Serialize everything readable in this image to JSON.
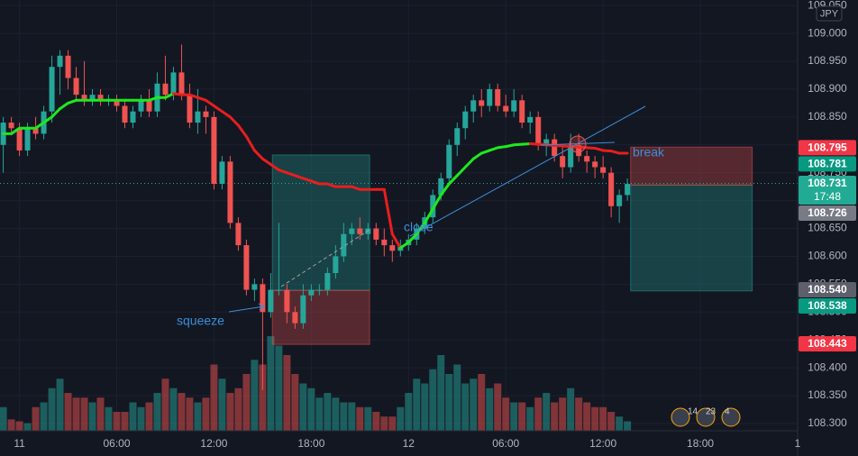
{
  "chart_data": {
    "type": "candlestick",
    "currency": "JPY",
    "x": [
      -1,
      -0.5,
      0,
      0.5,
      1,
      1.5,
      2,
      2.5,
      3,
      3.5,
      4,
      4.5,
      5,
      5.5,
      6,
      6.5,
      7,
      7.5,
      8,
      8.5,
      9,
      9.5,
      10,
      10.5,
      11,
      11.5,
      12,
      12.5,
      13,
      13.5,
      14,
      14.5,
      15,
      15.5,
      16,
      16.5,
      17,
      17.5,
      18,
      18.5,
      19,
      19.5,
      20,
      20.5,
      21,
      21.5,
      22,
      22.5,
      23,
      23.5,
      24,
      24.5,
      25,
      25.5,
      26,
      26.5,
      27,
      27.5,
      28,
      28.5,
      29,
      29.5,
      30,
      30.5,
      31,
      31.5,
      32,
      32.5,
      33,
      33.5,
      34,
      34.5,
      35,
      35.5,
      36,
      36.5,
      37,
      37.5
    ],
    "candles": [
      [
        108.8,
        108.85,
        108.75,
        108.84
      ],
      [
        108.84,
        108.85,
        108.82,
        108.83
      ],
      [
        108.83,
        108.84,
        108.78,
        108.79
      ],
      [
        108.79,
        108.84,
        108.78,
        108.83
      ],
      [
        108.83,
        108.85,
        108.81,
        108.82
      ],
      [
        108.82,
        108.87,
        108.81,
        108.86
      ],
      [
        108.86,
        108.96,
        108.84,
        108.94
      ],
      [
        108.94,
        108.97,
        108.89,
        108.96
      ],
      [
        108.96,
        108.97,
        108.9,
        108.92
      ],
      [
        108.92,
        108.94,
        108.88,
        108.89
      ],
      [
        108.89,
        108.95,
        108.87,
        108.88
      ],
      [
        108.88,
        108.9,
        108.87,
        108.89
      ],
      [
        108.89,
        108.9,
        108.87,
        108.88
      ],
      [
        108.88,
        108.89,
        108.87,
        108.88
      ],
      [
        108.88,
        108.89,
        108.86,
        108.87
      ],
      [
        108.87,
        108.88,
        108.83,
        108.84
      ],
      [
        108.84,
        108.87,
        108.83,
        108.86
      ],
      [
        108.86,
        108.89,
        108.85,
        108.88
      ],
      [
        108.88,
        108.9,
        108.85,
        108.86
      ],
      [
        108.86,
        108.93,
        108.85,
        108.91
      ],
      [
        108.91,
        108.96,
        108.88,
        108.89
      ],
      [
        108.89,
        108.94,
        108.88,
        108.93
      ],
      [
        108.93,
        108.98,
        108.88,
        108.89
      ],
      [
        108.89,
        108.91,
        108.83,
        108.84
      ],
      [
        108.84,
        108.9,
        108.82,
        108.86
      ],
      [
        108.86,
        108.87,
        108.82,
        108.85
      ],
      [
        108.85,
        108.86,
        108.72,
        108.73
      ],
      [
        108.73,
        108.78,
        108.72,
        108.77
      ],
      [
        108.77,
        108.78,
        108.65,
        108.66
      ],
      [
        108.66,
        108.67,
        108.61,
        108.62
      ],
      [
        108.62,
        108.63,
        108.53,
        108.54
      ],
      [
        108.54,
        108.56,
        108.52,
        108.55
      ],
      [
        108.55,
        108.56,
        108.36,
        108.5
      ],
      [
        108.5,
        108.57,
        108.49,
        108.54
      ],
      [
        108.54,
        108.66,
        108.53,
        108.54
      ],
      [
        108.54,
        108.55,
        108.48,
        108.5
      ],
      [
        108.5,
        108.51,
        108.47,
        108.48
      ],
      [
        108.48,
        108.55,
        108.47,
        108.53
      ],
      [
        108.53,
        108.55,
        108.52,
        108.54
      ],
      [
        108.54,
        108.55,
        108.53,
        108.54
      ],
      [
        108.54,
        108.58,
        108.53,
        108.57
      ],
      [
        108.57,
        108.62,
        108.56,
        108.6
      ],
      [
        108.6,
        108.66,
        108.59,
        108.64
      ],
      [
        108.64,
        108.66,
        108.62,
        108.65
      ],
      [
        108.65,
        108.67,
        108.63,
        108.64
      ],
      [
        108.64,
        108.66,
        108.63,
        108.65
      ],
      [
        108.65,
        108.66,
        108.62,
        108.63
      ],
      [
        108.63,
        108.65,
        108.6,
        108.62
      ],
      [
        108.62,
        108.63,
        108.59,
        108.61
      ],
      [
        108.61,
        108.63,
        108.6,
        108.62
      ],
      [
        108.62,
        108.64,
        108.61,
        108.63
      ],
      [
        108.63,
        108.66,
        108.62,
        108.65
      ],
      [
        108.65,
        108.68,
        108.64,
        108.67
      ],
      [
        108.67,
        108.72,
        108.66,
        108.71
      ],
      [
        108.71,
        108.75,
        108.7,
        108.74
      ],
      [
        108.74,
        108.81,
        108.73,
        108.8
      ],
      [
        108.8,
        108.84,
        108.78,
        108.83
      ],
      [
        108.83,
        108.87,
        108.81,
        108.86
      ],
      [
        108.86,
        108.89,
        108.84,
        108.88
      ],
      [
        108.88,
        108.9,
        108.85,
        108.87
      ],
      [
        108.87,
        108.91,
        108.86,
        108.9
      ],
      [
        108.9,
        108.91,
        108.86,
        108.87
      ],
      [
        108.87,
        108.89,
        108.85,
        108.86
      ],
      [
        108.86,
        108.9,
        108.85,
        108.88
      ],
      [
        108.88,
        108.89,
        108.83,
        108.84
      ],
      [
        108.84,
        108.86,
        108.82,
        108.85
      ],
      [
        108.85,
        108.86,
        108.79,
        108.8
      ],
      [
        108.8,
        108.82,
        108.78,
        108.81
      ],
      [
        108.81,
        108.82,
        108.77,
        108.78
      ],
      [
        108.78,
        108.8,
        108.74,
        108.76
      ],
      [
        108.76,
        108.82,
        108.75,
        108.8
      ],
      [
        108.8,
        108.82,
        108.77,
        108.78
      ],
      [
        108.78,
        108.79,
        108.75,
        108.77
      ],
      [
        108.77,
        108.78,
        108.74,
        108.76
      ],
      [
        108.76,
        108.78,
        108.74,
        108.75
      ],
      [
        108.75,
        108.76,
        108.67,
        108.69
      ],
      [
        108.69,
        108.72,
        108.66,
        108.71
      ],
      [
        108.71,
        108.74,
        108.7,
        108.73
      ]
    ],
    "volume": [
      25,
      12,
      10,
      8,
      25,
      30,
      45,
      55,
      40,
      35,
      35,
      30,
      35,
      25,
      20,
      20,
      30,
      25,
      30,
      40,
      55,
      45,
      40,
      35,
      30,
      35,
      70,
      55,
      40,
      45,
      60,
      75,
      70,
      100,
      90,
      80,
      60,
      50,
      45,
      35,
      40,
      35,
      30,
      30,
      25,
      25,
      20,
      15,
      15,
      25,
      40,
      55,
      50,
      65,
      80,
      60,
      70,
      50,
      55,
      60,
      45,
      50,
      35,
      30,
      30,
      25,
      35,
      40,
      30,
      35,
      45,
      35,
      30,
      25,
      25,
      20,
      15,
      10
    ],
    "up_color": "#26a69a",
    "down_color": "#ef5350",
    "ma": {
      "up_color": "#1ee81e",
      "down_color": "#e81e1e",
      "values": [
        108.82,
        108.82,
        108.83,
        108.83,
        108.83,
        108.84,
        108.85,
        108.865,
        108.875,
        108.88,
        108.88,
        108.88,
        108.88,
        108.88,
        108.88,
        108.88,
        108.88,
        108.88,
        108.88,
        108.885,
        108.885,
        108.892,
        108.89,
        108.89,
        108.885,
        108.88,
        108.87,
        108.86,
        108.85,
        108.835,
        108.815,
        108.79,
        108.775,
        108.765,
        108.755,
        108.75,
        108.745,
        108.74,
        108.735,
        108.73,
        108.73,
        108.725,
        108.725,
        108.725,
        108.72,
        108.72,
        108.72,
        108.72,
        108.64,
        108.615,
        108.625,
        108.64,
        108.66,
        108.685,
        108.71,
        108.73,
        108.745,
        108.76,
        108.775,
        108.785,
        108.79,
        108.795,
        108.797,
        108.8,
        108.801,
        108.802,
        108.801,
        108.8,
        108.799,
        108.798,
        108.797,
        108.796,
        108.795,
        108.794,
        108.79,
        108.789,
        108.785,
        108.785
      ]
    },
    "positions": [
      {
        "x": [
          15.6,
          21.6
        ],
        "entry": 108.539,
        "target": 108.782,
        "stop": 108.442
      },
      {
        "x": [
          37.7,
          45.2
        ],
        "entry": 108.728,
        "target": 108.538,
        "stop": 108.796
      }
    ],
    "last_price": 108.731,
    "price_labels": [
      {
        "value": 108.795,
        "label": "108.795",
        "color": "#f23645"
      },
      {
        "value": 108.781,
        "label": "108.781",
        "color": "#089981"
      },
      {
        "value": 108.731,
        "label": "108.731",
        "color": "#22ab94",
        "countdown": "17:48"
      },
      {
        "value": 108.726,
        "label": "108.726",
        "color": "#787b86"
      },
      {
        "value": 108.54,
        "label": "108.540",
        "color": "#5d606b"
      },
      {
        "value": 108.538,
        "label": "108.538",
        "color": "#089981"
      },
      {
        "value": 108.443,
        "label": "108.443",
        "color": "#f23645"
      }
    ],
    "annotations": [
      "squeeze",
      "close",
      "break"
    ],
    "events": [
      "14",
      "23",
      "4"
    ],
    "xlim": [
      -1.2,
      48
    ],
    "ylim": [
      108.287,
      109.06
    ],
    "xticks": [
      {
        "value": 0,
        "label": "11"
      },
      {
        "value": 6,
        "label": "06:00"
      },
      {
        "value": 12,
        "label": "12:00"
      },
      {
        "value": 18,
        "label": "18:00"
      },
      {
        "value": 24,
        "label": "12"
      },
      {
        "value": 30,
        "label": "06:00"
      },
      {
        "value": 36,
        "label": "12:00"
      },
      {
        "value": 42,
        "label": "18:00"
      },
      {
        "value": 48,
        "label": "1"
      }
    ],
    "yticks": [
      {
        "value": 108.3,
        "label": "108.300"
      },
      {
        "value": 108.35,
        "label": "108.350"
      },
      {
        "value": 108.4,
        "label": "108.400"
      },
      {
        "value": 108.45,
        "label": "108.450"
      },
      {
        "value": 108.5,
        "label": "108.500"
      },
      {
        "value": 108.55,
        "label": "108.550"
      },
      {
        "value": 108.6,
        "label": "108.600"
      },
      {
        "value": 108.65,
        "label": "108.650"
      },
      {
        "value": 108.7,
        "label": "108.700"
      },
      {
        "value": 108.75,
        "label": "108.750"
      },
      {
        "value": 108.8,
        "label": "108.800"
      },
      {
        "value": 108.85,
        "label": "108.850"
      },
      {
        "value": 108.9,
        "label": "108.900"
      },
      {
        "value": 108.95,
        "label": "108.950"
      },
      {
        "value": 109.0,
        "label": "109.000"
      },
      {
        "value": 109.05,
        "label": "109.050"
      }
    ],
    "grid": true
  }
}
